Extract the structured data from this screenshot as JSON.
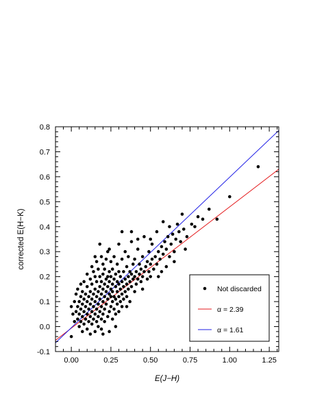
{
  "chart_data": {
    "type": "scatter",
    "title": "",
    "xlabel": "E(J−H)",
    "ylabel": "corrected E(H−K)",
    "xlim": [
      -0.1,
      1.31
    ],
    "ylim": [
      -0.1,
      0.8
    ],
    "xticks": [
      "0.00",
      "0.25",
      "0.50",
      "0.75",
      "1.00",
      "1.25"
    ],
    "yticks": [
      "-0.1",
      "0.0",
      "0.1",
      "0.2",
      "0.3",
      "0.4",
      "0.5",
      "0.6",
      "0.7",
      "0.8"
    ],
    "grid": false,
    "legend_position": "bottom-right",
    "series": [
      {
        "name": "Not discarded",
        "kind": "points",
        "color": "#000000",
        "points": [
          [
            0.0,
            -0.04
          ],
          [
            0.0,
            0.08
          ],
          [
            0.01,
            0.05
          ],
          [
            0.02,
            0.02
          ],
          [
            0.02,
            0.1
          ],
          [
            0.03,
            0.06
          ],
          [
            0.03,
            0.13
          ],
          [
            0.04,
            0.03
          ],
          [
            0.04,
            0.08
          ],
          [
            0.04,
            0.15
          ],
          [
            0.05,
            0.0
          ],
          [
            0.05,
            0.05
          ],
          [
            0.05,
            0.1
          ],
          [
            0.06,
            0.02
          ],
          [
            0.06,
            0.07
          ],
          [
            0.06,
            0.12
          ],
          [
            0.06,
            0.17
          ],
          [
            0.07,
            -0.02
          ],
          [
            0.07,
            0.04
          ],
          [
            0.07,
            0.09
          ],
          [
            0.07,
            0.14
          ],
          [
            0.08,
            0.01
          ],
          [
            0.08,
            0.06
          ],
          [
            0.08,
            0.11
          ],
          [
            0.08,
            0.18
          ],
          [
            0.09,
            0.03
          ],
          [
            0.09,
            0.08
          ],
          [
            0.09,
            0.13
          ],
          [
            0.1,
            -0.01
          ],
          [
            0.1,
            0.05
          ],
          [
            0.1,
            0.1
          ],
          [
            0.1,
            0.16
          ],
          [
            0.1,
            0.21
          ],
          [
            0.11,
            0.02
          ],
          [
            0.11,
            0.07
          ],
          [
            0.11,
            0.12
          ],
          [
            0.12,
            -0.03
          ],
          [
            0.12,
            0.04
          ],
          [
            0.12,
            0.09
          ],
          [
            0.12,
            0.14
          ],
          [
            0.12,
            0.19
          ],
          [
            0.13,
            0.01
          ],
          [
            0.13,
            0.06
          ],
          [
            0.13,
            0.11
          ],
          [
            0.13,
            0.17
          ],
          [
            0.13,
            0.24
          ],
          [
            0.14,
            0.03
          ],
          [
            0.14,
            0.08
          ],
          [
            0.14,
            0.13
          ],
          [
            0.14,
            0.22
          ],
          [
            0.15,
            -0.02
          ],
          [
            0.15,
            0.05
          ],
          [
            0.15,
            0.1
          ],
          [
            0.15,
            0.15
          ],
          [
            0.15,
            0.2
          ],
          [
            0.16,
            0.02
          ],
          [
            0.16,
            0.07
          ],
          [
            0.16,
            0.12
          ],
          [
            0.16,
            0.18
          ],
          [
            0.16,
            0.26
          ],
          [
            0.17,
            0.0
          ],
          [
            0.17,
            0.04
          ],
          [
            0.17,
            0.09
          ],
          [
            0.17,
            0.14
          ],
          [
            0.17,
            0.23
          ],
          [
            0.18,
            0.06
          ],
          [
            0.18,
            0.11
          ],
          [
            0.18,
            0.16
          ],
          [
            0.18,
            0.2
          ],
          [
            0.19,
            -0.01
          ],
          [
            0.19,
            0.03
          ],
          [
            0.19,
            0.08
          ],
          [
            0.19,
            0.13
          ],
          [
            0.19,
            0.18
          ],
          [
            0.19,
            0.28
          ],
          [
            0.2,
            0.05
          ],
          [
            0.2,
            0.1
          ],
          [
            0.2,
            0.15
          ],
          [
            0.2,
            0.21
          ],
          [
            0.2,
            0.25
          ],
          [
            0.21,
            0.02
          ],
          [
            0.21,
            0.07
          ],
          [
            0.21,
            0.12
          ],
          [
            0.21,
            0.17
          ],
          [
            0.21,
            0.23
          ],
          [
            0.22,
            0.09
          ],
          [
            0.22,
            0.14
          ],
          [
            0.22,
            0.19
          ],
          [
            0.22,
            0.27
          ],
          [
            0.23,
            0.04
          ],
          [
            0.23,
            0.11
          ],
          [
            0.23,
            0.16
          ],
          [
            0.23,
            0.2
          ],
          [
            0.24,
            -0.02
          ],
          [
            0.24,
            0.06
          ],
          [
            0.24,
            0.13
          ],
          [
            0.24,
            0.18
          ],
          [
            0.24,
            0.22
          ],
          [
            0.24,
            0.31
          ],
          [
            0.25,
            0.08
          ],
          [
            0.25,
            0.12
          ],
          [
            0.25,
            0.15
          ],
          [
            0.25,
            0.2
          ],
          [
            0.25,
            0.26
          ],
          [
            0.26,
            0.03
          ],
          [
            0.26,
            0.1
          ],
          [
            0.26,
            0.14
          ],
          [
            0.26,
            0.17
          ],
          [
            0.26,
            0.23
          ],
          [
            0.27,
            0.07
          ],
          [
            0.27,
            0.12
          ],
          [
            0.27,
            0.19
          ],
          [
            0.27,
            0.28
          ],
          [
            0.28,
            0.05
          ],
          [
            0.28,
            0.11
          ],
          [
            0.28,
            0.16
          ],
          [
            0.28,
            0.21
          ],
          [
            0.29,
            0.09
          ],
          [
            0.29,
            0.14
          ],
          [
            0.29,
            0.18
          ],
          [
            0.29,
            0.25
          ],
          [
            0.3,
            0.06
          ],
          [
            0.3,
            0.12
          ],
          [
            0.3,
            0.17
          ],
          [
            0.3,
            0.22
          ],
          [
            0.3,
            0.33
          ],
          [
            0.31,
            0.1
          ],
          [
            0.31,
            0.15
          ],
          [
            0.31,
            0.2
          ],
          [
            0.32,
            0.08
          ],
          [
            0.32,
            0.13
          ],
          [
            0.32,
            0.18
          ],
          [
            0.32,
            0.27
          ],
          [
            0.33,
            0.11
          ],
          [
            0.33,
            0.16
          ],
          [
            0.33,
            0.22
          ],
          [
            0.34,
            0.14
          ],
          [
            0.34,
            0.19
          ],
          [
            0.34,
            0.3
          ],
          [
            0.35,
            0.12
          ],
          [
            0.35,
            0.17
          ],
          [
            0.35,
            0.24
          ],
          [
            0.36,
            0.15
          ],
          [
            0.36,
            0.2
          ],
          [
            0.36,
            0.28
          ],
          [
            0.37,
            0.1
          ],
          [
            0.37,
            0.18
          ],
          [
            0.37,
            0.22
          ],
          [
            0.38,
            0.16
          ],
          [
            0.38,
            0.21
          ],
          [
            0.38,
            0.34
          ],
          [
            0.39,
            0.19
          ],
          [
            0.39,
            0.25
          ],
          [
            0.4,
            0.14
          ],
          [
            0.4,
            0.2
          ],
          [
            0.4,
            0.27
          ],
          [
            0.41,
            0.17
          ],
          [
            0.41,
            0.22
          ],
          [
            0.42,
            0.19
          ],
          [
            0.42,
            0.31
          ],
          [
            0.43,
            0.21
          ],
          [
            0.43,
            0.25
          ],
          [
            0.44,
            0.18
          ],
          [
            0.44,
            0.23
          ],
          [
            0.45,
            0.2
          ],
          [
            0.45,
            0.28
          ],
          [
            0.46,
            0.22
          ],
          [
            0.46,
            0.36
          ],
          [
            0.47,
            0.24
          ],
          [
            0.48,
            0.19
          ],
          [
            0.48,
            0.26
          ],
          [
            0.49,
            0.22
          ],
          [
            0.49,
            0.3
          ],
          [
            0.5,
            0.2
          ],
          [
            0.5,
            0.25
          ],
          [
            0.51,
            0.27
          ],
          [
            0.51,
            0.33
          ],
          [
            0.52,
            0.23
          ],
          [
            0.53,
            0.28
          ],
          [
            0.54,
            0.25
          ],
          [
            0.54,
            0.38
          ],
          [
            0.55,
            0.3
          ],
          [
            0.56,
            0.27
          ],
          [
            0.57,
            0.32
          ],
          [
            0.57,
            0.22
          ],
          [
            0.58,
            0.29
          ],
          [
            0.59,
            0.34
          ],
          [
            0.6,
            0.31
          ],
          [
            0.61,
            0.36
          ],
          [
            0.62,
            0.28
          ],
          [
            0.62,
            0.4
          ],
          [
            0.63,
            0.33
          ],
          [
            0.64,
            0.37
          ],
          [
            0.65,
            0.3
          ],
          [
            0.66,
            0.35
          ],
          [
            0.67,
            0.41
          ],
          [
            0.68,
            0.38
          ],
          [
            0.69,
            0.34
          ],
          [
            0.7,
            0.45
          ],
          [
            0.71,
            0.39
          ],
          [
            0.73,
            0.36
          ],
          [
            0.76,
            0.41
          ],
          [
            0.78,
            0.4
          ],
          [
            0.8,
            0.44
          ],
          [
            0.83,
            0.43
          ],
          [
            0.87,
            0.47
          ],
          [
            0.92,
            0.43
          ],
          [
            1.0,
            0.52
          ],
          [
            1.18,
            0.64
          ],
          [
            0.55,
            0.2
          ],
          [
            0.45,
            0.15
          ],
          [
            0.35,
            0.08
          ],
          [
            0.28,
            0.0
          ],
          [
            0.2,
            -0.03
          ],
          [
            0.15,
            0.28
          ],
          [
            0.23,
            0.3
          ],
          [
            0.38,
            0.38
          ],
          [
            0.5,
            0.35
          ],
          [
            0.6,
            0.24
          ],
          [
            0.65,
            0.26
          ],
          [
            0.72,
            0.31
          ],
          [
            0.58,
            0.42
          ],
          [
            0.42,
            0.35
          ],
          [
            0.32,
            0.38
          ],
          [
            0.18,
            0.33
          ]
        ]
      },
      {
        "name": "α = 2.39",
        "kind": "line",
        "color": "#e41a1c",
        "x": [
          -0.1,
          1.31
        ],
        "y": [
          -0.055,
          0.63
        ]
      },
      {
        "name": "α = 1.61",
        "kind": "line",
        "color": "#1f1fe6",
        "x": [
          -0.1,
          1.31
        ],
        "y": [
          -0.065,
          0.785
        ]
      }
    ]
  }
}
